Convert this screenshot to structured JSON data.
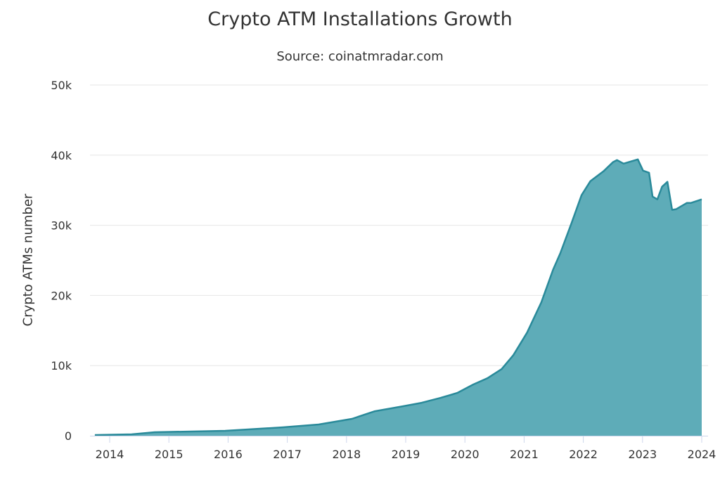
{
  "chart_data": {
    "type": "area",
    "title": "Crypto ATM Installations Growth",
    "subtitle": "Source: coinatmradar.com",
    "xlabel": "",
    "ylabel": "Crypto ATMs number",
    "ylim": [
      0,
      50000
    ],
    "xlim": [
      2013.67,
      2024.1
    ],
    "yticks": [
      0,
      10000,
      20000,
      30000,
      40000,
      50000
    ],
    "ytick_labels": [
      "0",
      "10k",
      "20k",
      "30k",
      "40k",
      "50k"
    ],
    "xticks": [
      2014,
      2015,
      2016,
      2017,
      2018,
      2019,
      2020,
      2021,
      2022,
      2023,
      2024
    ],
    "xtick_labels": [
      "2014",
      "2015",
      "2016",
      "2017",
      "2018",
      "2019",
      "2020",
      "2021",
      "2022",
      "2023",
      "2024"
    ],
    "grid": "horizontal",
    "legend": "none",
    "colors": {
      "fill": "#5eacb8",
      "line": "#2a8a9a",
      "grid": "#e6e6e6",
      "axis": "#ccd6eb"
    },
    "series": [
      {
        "name": "Crypto ATMs",
        "x": [
          2013.75,
          2014.37,
          2014.76,
          2015.95,
          2016.93,
          2017.53,
          2018.09,
          2018.48,
          2018.95,
          2019.27,
          2019.59,
          2019.87,
          2020.14,
          2020.38,
          2020.62,
          2020.82,
          2021.05,
          2021.29,
          2021.49,
          2021.61,
          2021.8,
          2021.97,
          2022.12,
          2022.34,
          2022.5,
          2022.57,
          2022.68,
          2022.92,
          2023.01,
          2023.11,
          2023.17,
          2023.25,
          2023.33,
          2023.42,
          2023.5,
          2023.57,
          2023.75,
          2023.82,
          2024.0
        ],
        "values": [
          100,
          200,
          500,
          700,
          1200,
          1600,
          2400,
          3500,
          4200,
          4700,
          5400,
          6100,
          7300,
          8200,
          9500,
          11500,
          14700,
          19000,
          23700,
          26000,
          30300,
          34300,
          36300,
          37700,
          39000,
          39300,
          38800,
          39400,
          37800,
          37500,
          34100,
          33700,
          35500,
          36200,
          32200,
          32300,
          33200,
          33200,
          33700
        ]
      }
    ]
  }
}
